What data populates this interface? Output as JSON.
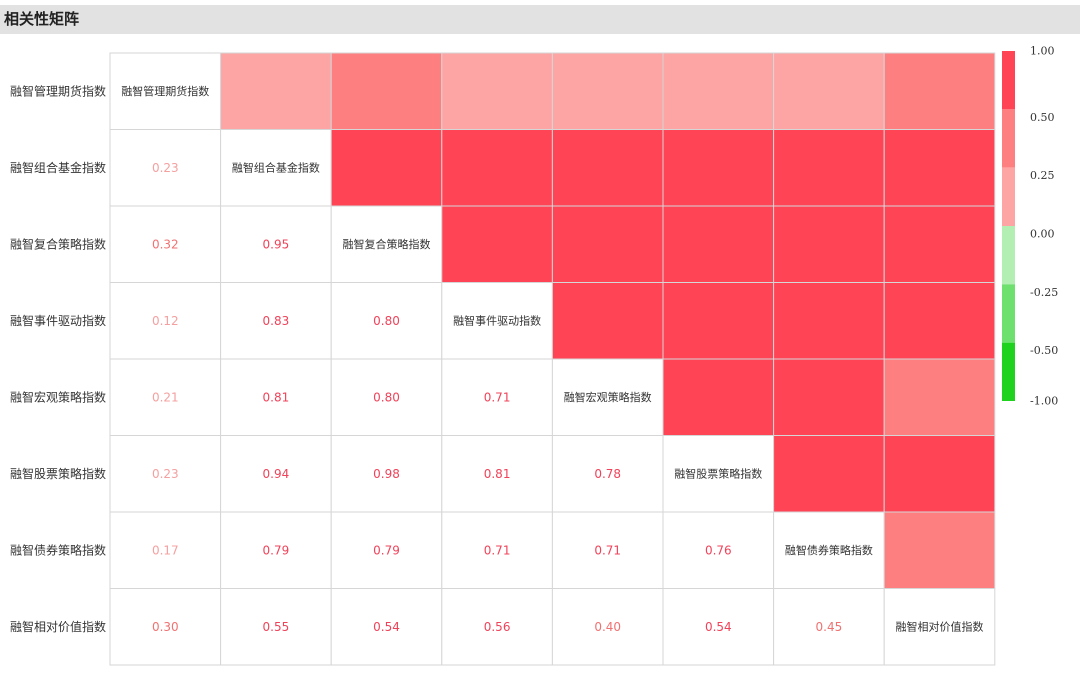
{
  "title": "相关性矩阵",
  "chart_data": {
    "type": "heatmap",
    "labels": [
      "融智管理期货指数",
      "融智组合基金指数",
      "融智复合策略指数",
      "融智事件驱动指数",
      "融智宏观策略指数",
      "融智股票策略指数",
      "融智债券策略指数",
      "融智相对价值指数"
    ],
    "matrix": [
      [
        1.0,
        0.23,
        0.32,
        0.12,
        0.21,
        0.23,
        0.17,
        0.3
      ],
      [
        0.23,
        1.0,
        0.95,
        0.83,
        0.81,
        0.94,
        0.79,
        0.55
      ],
      [
        0.32,
        0.95,
        1.0,
        0.8,
        0.8,
        0.98,
        0.79,
        0.54
      ],
      [
        0.12,
        0.83,
        0.8,
        1.0,
        0.71,
        0.81,
        0.71,
        0.56
      ],
      [
        0.21,
        0.81,
        0.8,
        0.71,
        1.0,
        0.78,
        0.71,
        0.4
      ],
      [
        0.23,
        0.94,
        0.98,
        0.81,
        0.78,
        1.0,
        0.76,
        0.54
      ],
      [
        0.17,
        0.79,
        0.79,
        0.71,
        0.71,
        0.76,
        1.0,
        0.45
      ],
      [
        0.3,
        0.55,
        0.54,
        0.56,
        0.4,
        0.54,
        0.45,
        1.0
      ]
    ],
    "value_labels": [
      [
        "",
        "",
        "",
        "",
        "",
        "",
        "",
        ""
      ],
      [
        "0.23",
        "",
        "",
        "",
        "",
        "",
        "",
        ""
      ],
      [
        "0.32",
        "0.95",
        "",
        "",
        "",
        "",
        "",
        ""
      ],
      [
        "0.12",
        "0.83",
        "0.80",
        "",
        "",
        "",
        "",
        ""
      ],
      [
        "0.21",
        "0.81",
        "0.80",
        "0.71",
        "",
        "",
        "",
        ""
      ],
      [
        "0.23",
        "0.94",
        "0.98",
        "0.81",
        "0.78",
        "",
        "",
        ""
      ],
      [
        "0.17",
        "0.79",
        "0.79",
        "0.71",
        "0.71",
        "0.76",
        "",
        ""
      ],
      [
        "0.30",
        "0.55",
        "0.54",
        "0.56",
        "0.40",
        "0.54",
        "0.45",
        ""
      ]
    ],
    "color_scale": {
      "ticks": [
        "1.00",
        "0.50",
        "0.25",
        "0.00",
        "-0.25",
        "-0.50",
        "-1.00"
      ],
      "bins": [
        {
          "min": 0.5,
          "max": 1.0,
          "color": "#ff4455"
        },
        {
          "min": 0.25,
          "max": 0.5,
          "color": "#fe7f7f"
        },
        {
          "min": 0.0,
          "max": 0.25,
          "color": "#fda4a4"
        },
        {
          "min": -0.25,
          "max": 0.0,
          "color": "#b3eeb3"
        },
        {
          "min": -0.5,
          "max": -0.25,
          "color": "#6ee06e"
        },
        {
          "min": -1.0,
          "max": -0.5,
          "color": "#1ed21e"
        }
      ]
    },
    "text_colors": {
      "strong": "#f0435a",
      "medium": "#f07272",
      "weak": "#f4a0a0"
    }
  }
}
